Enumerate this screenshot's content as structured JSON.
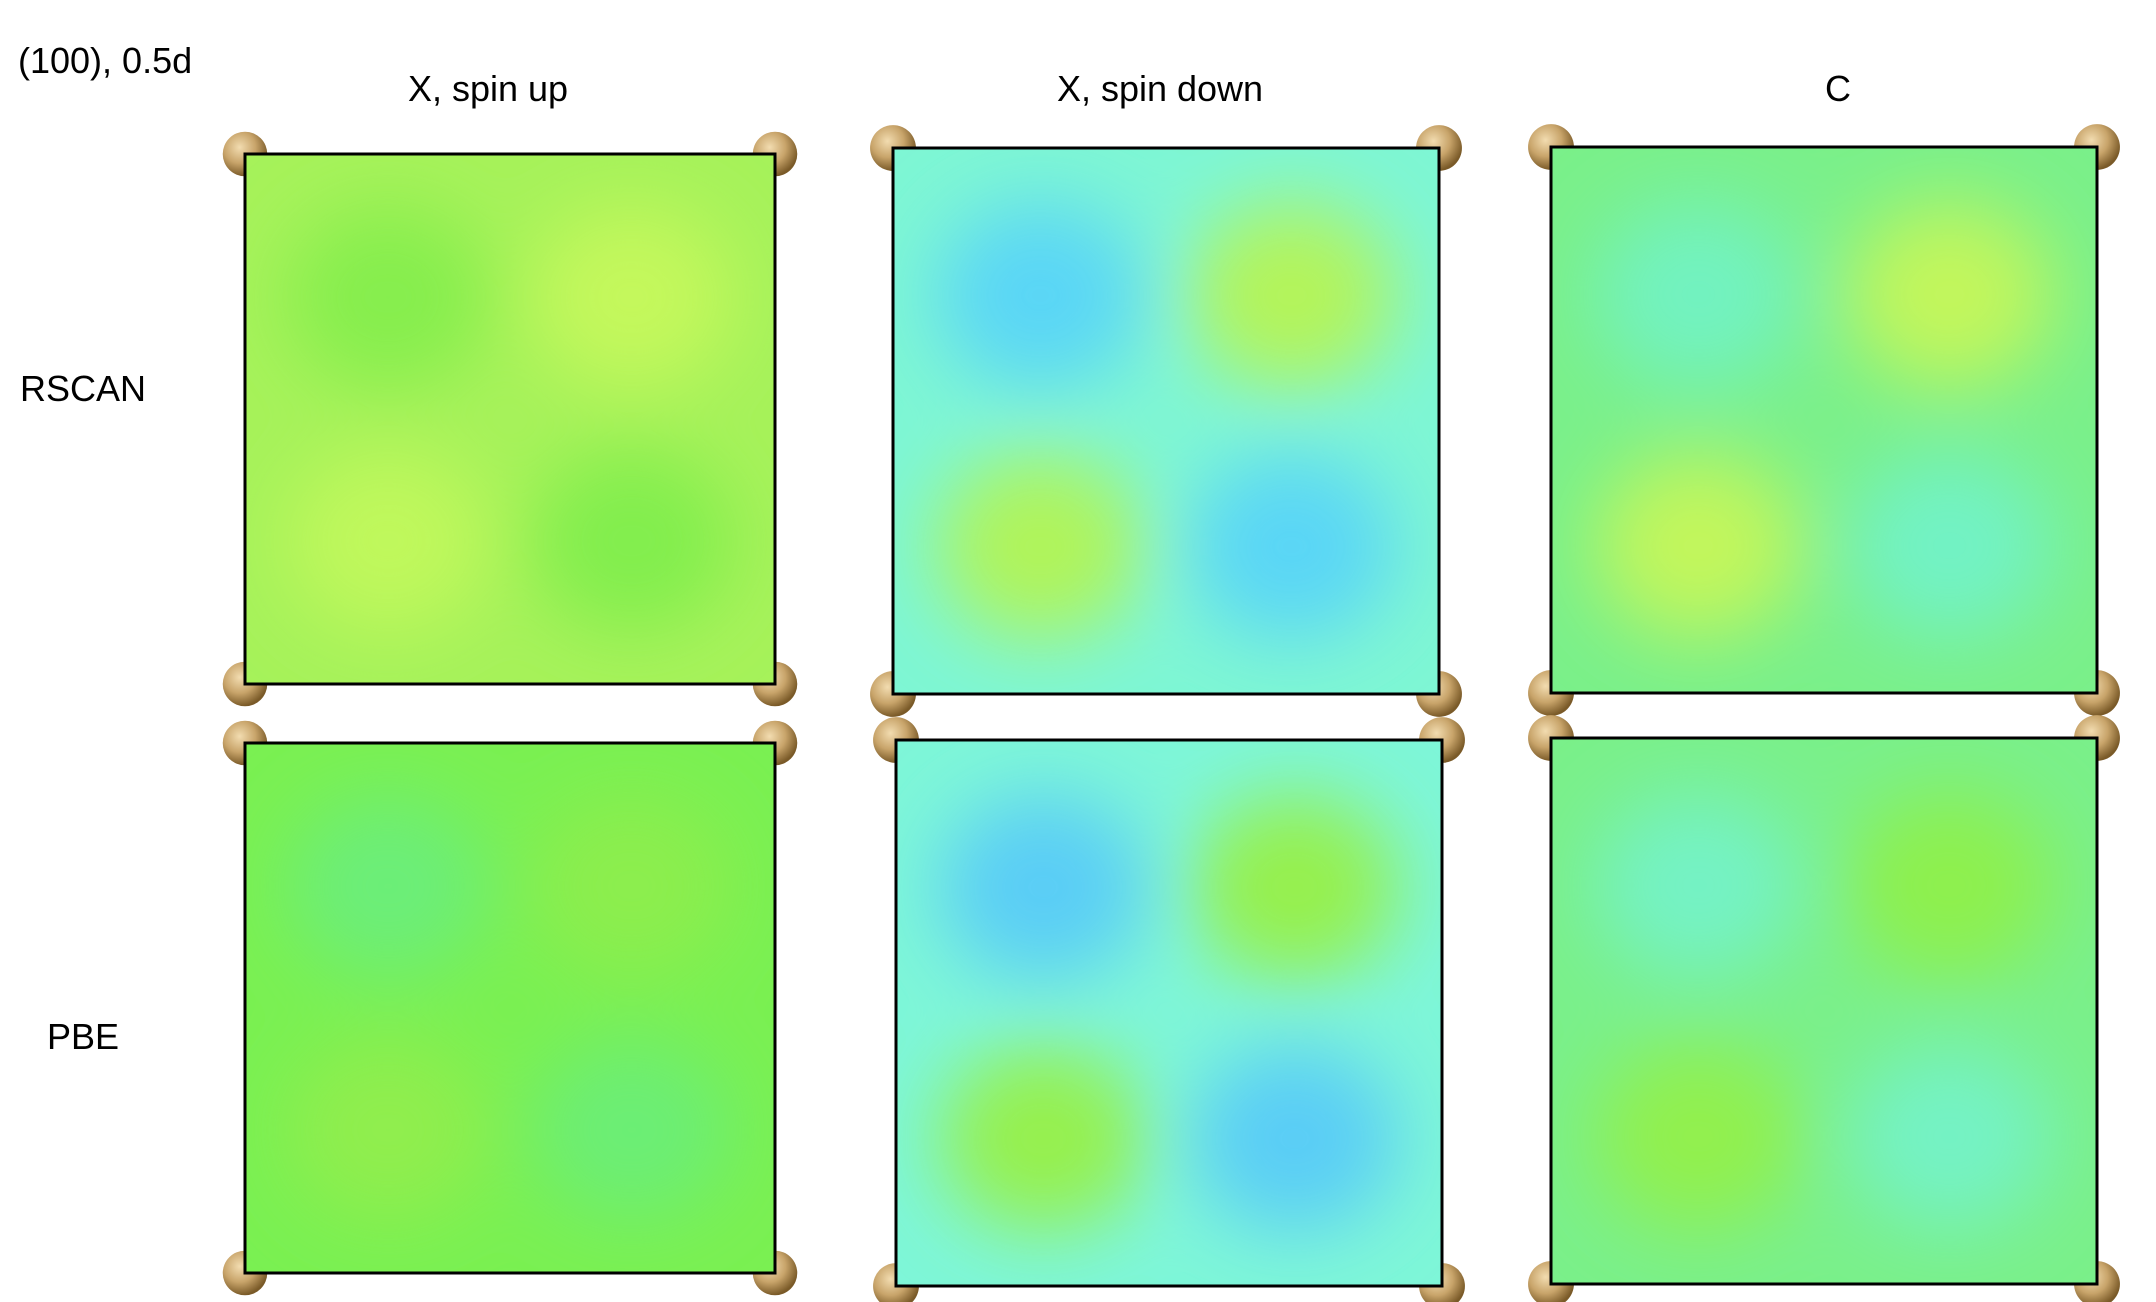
{
  "plane_label": "(100), 0.5d",
  "columns": [
    "X, spin up",
    "X, spin down",
    "C"
  ],
  "rows": [
    "RSCAN",
    "PBE"
  ],
  "colors": {
    "frame": "#000000",
    "atom": "#c8a46a",
    "atom_highlight": "#f2dcb0",
    "atom_shadow": "#7a5a28"
  },
  "panels": [
    {
      "row": "RSCAN",
      "column": "X, spin up",
      "background": "#a6f25a",
      "blobs": [
        {
          "position": "top-left",
          "color": "#86ee4e"
        },
        {
          "position": "top-right",
          "color": "#c4f85c"
        },
        {
          "position": "bottom-left",
          "color": "#c0f85c"
        },
        {
          "position": "bottom-right",
          "color": "#82ee4e"
        }
      ]
    },
    {
      "row": "RSCAN",
      "column": "X, spin down",
      "background": "#7ef6d4",
      "blobs": [
        {
          "position": "top-left",
          "color": "#5ad6f6"
        },
        {
          "position": "top-right",
          "color": "#b4f45a"
        },
        {
          "position": "bottom-left",
          "color": "#b0f45a"
        },
        {
          "position": "bottom-right",
          "color": "#5ad6f6"
        }
      ]
    },
    {
      "row": "RSCAN",
      "column": "C",
      "background": "#7af08a",
      "blobs": [
        {
          "position": "top-left",
          "color": "#72f2c0"
        },
        {
          "position": "top-right",
          "color": "#c2f65c"
        },
        {
          "position": "bottom-left",
          "color": "#c2f65c"
        },
        {
          "position": "bottom-right",
          "color": "#72f2c4"
        }
      ]
    },
    {
      "row": "PBE",
      "column": "X, spin up",
      "background": "#7af052",
      "blobs": [
        {
          "position": "top-left",
          "color": "#6cee78"
        },
        {
          "position": "top-right",
          "color": "#8cee4e"
        },
        {
          "position": "bottom-left",
          "color": "#90ee4e"
        },
        {
          "position": "bottom-right",
          "color": "#6cee74"
        }
      ]
    },
    {
      "row": "PBE",
      "column": "X, spin down",
      "background": "#7ef6d8",
      "blobs": [
        {
          "position": "top-left",
          "color": "#5acdf6"
        },
        {
          "position": "top-right",
          "color": "#96f04e"
        },
        {
          "position": "bottom-left",
          "color": "#96f04e"
        },
        {
          "position": "bottom-right",
          "color": "#5acdf6"
        }
      ]
    },
    {
      "row": "PBE",
      "column": "C",
      "background": "#7af08a",
      "blobs": [
        {
          "position": "top-left",
          "color": "#74f2c4"
        },
        {
          "position": "top-right",
          "color": "#8ef04e"
        },
        {
          "position": "bottom-left",
          "color": "#92f04e"
        },
        {
          "position": "bottom-right",
          "color": "#74f2c4"
        }
      ]
    }
  ]
}
